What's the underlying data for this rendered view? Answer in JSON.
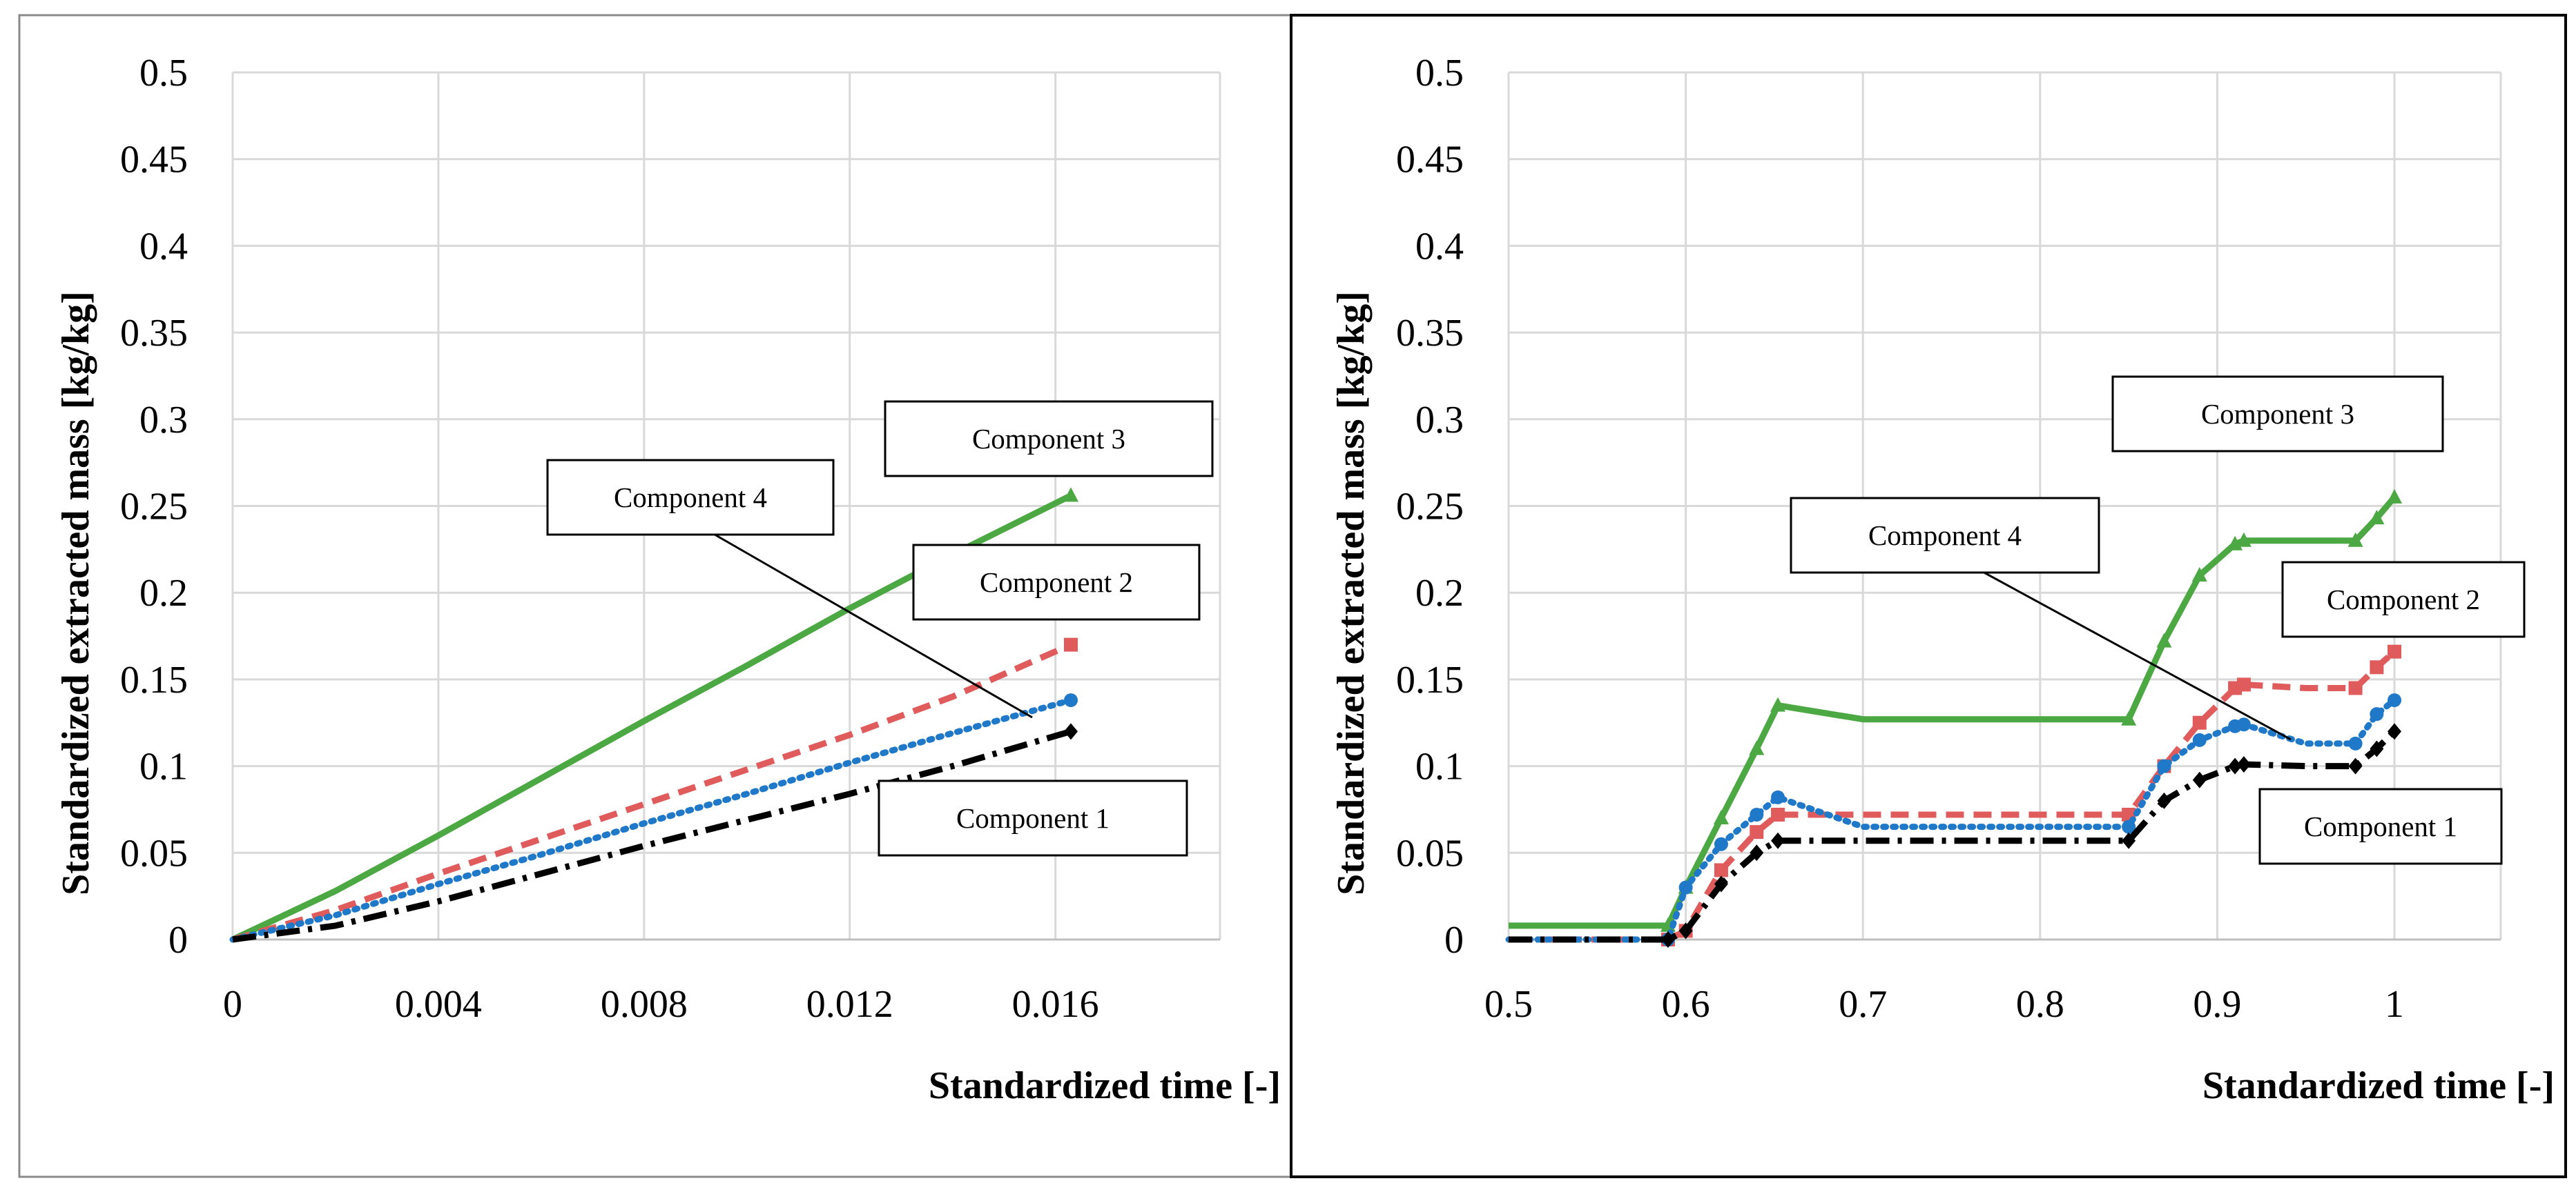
{
  "chart_data": [
    {
      "type": "line",
      "xlabel": "Standardized time [-]",
      "ylabel": "Standardized extracted mass [kg/kg]",
      "xlim": [
        0,
        0.0192
      ],
      "ylim": [
        0,
        0.5
      ],
      "x_ticks": [
        0,
        0.004,
        0.008,
        0.012,
        0.016
      ],
      "x_tick_labels": [
        "0",
        "0.004",
        "0.008",
        "0.012",
        "0.016"
      ],
      "y_ticks": [
        0,
        0.05,
        0.1,
        0.15,
        0.2,
        0.25,
        0.3,
        0.35,
        0.4,
        0.45,
        0.5
      ],
      "y_tick_labels": [
        "0",
        "0.05",
        "0.1",
        "0.15",
        "0.2",
        "0.25",
        "0.3",
        "0.35",
        "0.4",
        "0.45",
        "0.5"
      ],
      "grid": true,
      "series": [
        {
          "name": "Component 1",
          "color": "#000000",
          "dash": "dashdot",
          "marker": "diamond",
          "x": [
            0,
            0.002,
            0.004,
            0.006,
            0.008,
            0.01,
            0.012,
            0.014,
            0.0163
          ],
          "y": [
            0,
            0.008,
            0.022,
            0.038,
            0.054,
            0.069,
            0.084,
            0.1,
            0.12
          ]
        },
        {
          "name": "Component 2",
          "color": "#E05B5B",
          "dash": "dashed",
          "marker": "square",
          "x": [
            0,
            0.002,
            0.004,
            0.006,
            0.008,
            0.01,
            0.012,
            0.014,
            0.0163
          ],
          "y": [
            0,
            0.017,
            0.038,
            0.058,
            0.078,
            0.098,
            0.118,
            0.14,
            0.17
          ]
        },
        {
          "name": "Component 3",
          "color": "#4CA843",
          "dash": "solid",
          "marker": "triangle",
          "x": [
            0,
            0.002,
            0.004,
            0.006,
            0.008,
            0.01,
            0.012,
            0.014,
            0.0163
          ],
          "y": [
            0,
            0.028,
            0.06,
            0.093,
            0.126,
            0.158,
            0.191,
            0.222,
            0.256
          ]
        },
        {
          "name": "Component 4",
          "color": "#1F78C8",
          "dash": "dotted",
          "marker": "circle",
          "x": [
            0,
            0.002,
            0.004,
            0.006,
            0.008,
            0.01,
            0.012,
            0.014,
            0.0163
          ],
          "y": [
            0,
            0.014,
            0.032,
            0.049,
            0.067,
            0.084,
            0.102,
            0.119,
            0.138
          ]
        }
      ],
      "annotations": [
        {
          "label": "Component 3",
          "series": "Component 3"
        },
        {
          "label": "Component 4",
          "series": "Component 4"
        },
        {
          "label": "Component 2",
          "series": "Component 2"
        },
        {
          "label": "Component 1",
          "series": "Component 1"
        }
      ]
    },
    {
      "type": "line",
      "xlabel": "Standardized time [-]",
      "ylabel": "Standardized extracted mass [kg/kg]",
      "xlim": [
        0.5,
        1.06
      ],
      "ylim": [
        0,
        0.5
      ],
      "x_ticks": [
        0.5,
        0.6,
        0.7,
        0.8,
        0.9,
        1
      ],
      "x_tick_labels": [
        "0.5",
        "0.6",
        "0.7",
        "0.8",
        "0.9",
        "1"
      ],
      "y_ticks": [
        0,
        0.05,
        0.1,
        0.15,
        0.2,
        0.25,
        0.3,
        0.35,
        0.4,
        0.45,
        0.5
      ],
      "y_tick_labels": [
        "0",
        "0.05",
        "0.1",
        "0.15",
        "0.2",
        "0.25",
        "0.3",
        "0.35",
        "0.4",
        "0.45",
        "0.5"
      ],
      "grid": true,
      "series": [
        {
          "name": "Component 1",
          "color": "#000000",
          "dash": "dashdot",
          "marker": "diamond",
          "x": [
            0.5,
            0.59,
            0.6,
            0.62,
            0.64,
            0.652,
            0.7,
            0.8,
            0.85,
            0.87,
            0.89,
            0.91,
            0.915,
            0.95,
            0.978,
            0.99,
            1.0
          ],
          "y": [
            0,
            0,
            0.005,
            0.032,
            0.05,
            0.057,
            0.057,
            0.057,
            0.057,
            0.08,
            0.092,
            0.1,
            0.101,
            0.1,
            0.1,
            0.11,
            0.12
          ]
        },
        {
          "name": "Component 2",
          "color": "#E05B5B",
          "dash": "dashed",
          "marker": "square",
          "x": [
            0.5,
            0.59,
            0.6,
            0.62,
            0.64,
            0.652,
            0.7,
            0.8,
            0.85,
            0.87,
            0.89,
            0.91,
            0.915,
            0.95,
            0.978,
            0.99,
            1.0
          ],
          "y": [
            0,
            0,
            0.005,
            0.04,
            0.062,
            0.072,
            0.072,
            0.072,
            0.072,
            0.1,
            0.125,
            0.145,
            0.147,
            0.145,
            0.145,
            0.157,
            0.166
          ]
        },
        {
          "name": "Component 3",
          "color": "#4CA843",
          "dash": "solid",
          "marker": "triangle",
          "x": [
            0.5,
            0.59,
            0.6,
            0.62,
            0.64,
            0.652,
            0.7,
            0.8,
            0.85,
            0.87,
            0.89,
            0.91,
            0.915,
            0.95,
            0.978,
            0.99,
            1.0
          ],
          "y": [
            0.008,
            0.008,
            0.03,
            0.07,
            0.11,
            0.135,
            0.127,
            0.127,
            0.127,
            0.172,
            0.21,
            0.228,
            0.23,
            0.23,
            0.23,
            0.243,
            0.255
          ]
        },
        {
          "name": "Component 4",
          "color": "#1F78C8",
          "dash": "dotted",
          "marker": "circle",
          "x": [
            0.5,
            0.59,
            0.6,
            0.62,
            0.64,
            0.652,
            0.7,
            0.8,
            0.85,
            0.87,
            0.89,
            0.91,
            0.915,
            0.95,
            0.978,
            0.99,
            1.0
          ],
          "y": [
            0,
            0,
            0.03,
            0.055,
            0.072,
            0.082,
            0.065,
            0.065,
            0.065,
            0.1,
            0.115,
            0.123,
            0.124,
            0.113,
            0.113,
            0.13,
            0.138
          ]
        }
      ],
      "annotations": [
        {
          "label": "Component 3",
          "series": "Component 3"
        },
        {
          "label": "Component 4",
          "series": "Component 4"
        },
        {
          "label": "Component 2",
          "series": "Component 2"
        },
        {
          "label": "Component 1",
          "series": "Component 1"
        }
      ]
    }
  ]
}
